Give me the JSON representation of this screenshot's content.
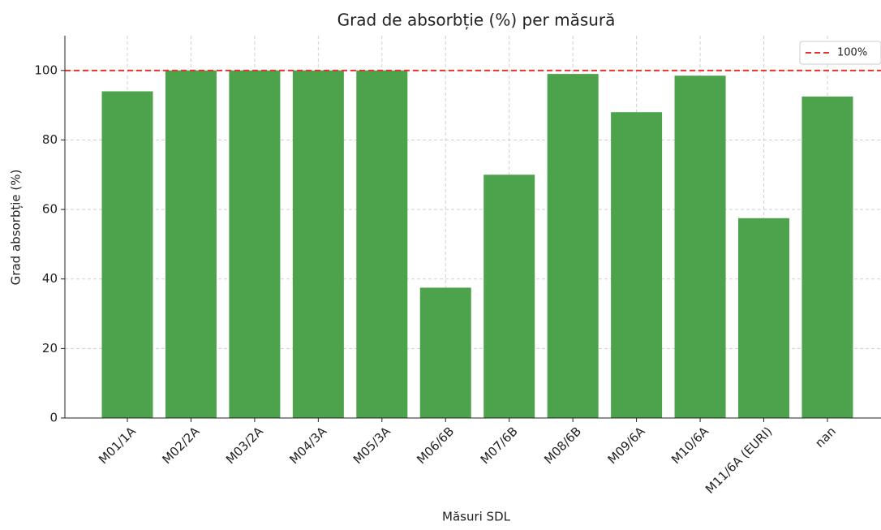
{
  "chart_data": {
    "type": "bar",
    "title": "Grad de absorbție (%) per măsură",
    "x_label": "Măsuri SDL",
    "y_label": "Grad absorbție (%)",
    "categories": [
      "M01/1A",
      "M02/2A",
      "M03/2A",
      "M04/3A",
      "M05/3A",
      "M06/6B",
      "M07/6B",
      "M08/6B",
      "M09/6A",
      "M10/6A",
      "M11/6A (EURI)",
      "nan"
    ],
    "values": [
      94,
      100,
      100,
      100,
      100,
      37.5,
      70,
      99,
      88,
      98.5,
      57.5,
      92.5
    ],
    "color": "#4ca34c",
    "ylim": [
      0,
      110
    ],
    "yticks": [
      0,
      20,
      40,
      60,
      80,
      100
    ],
    "grid": true,
    "reference_line": {
      "value": 100,
      "label": "100%",
      "color": "#e8322d"
    },
    "legend": "upper right"
  }
}
